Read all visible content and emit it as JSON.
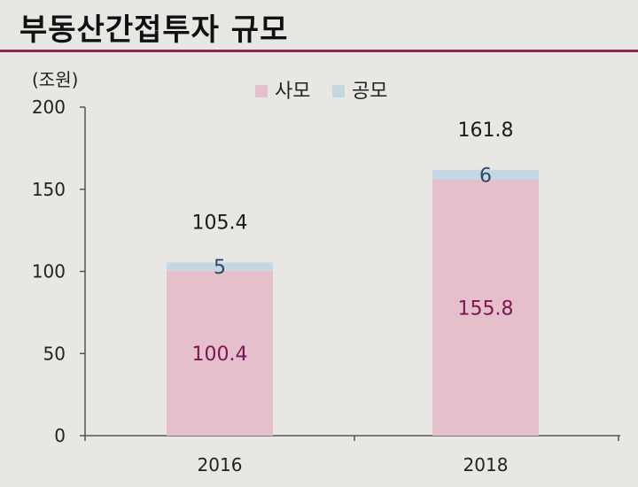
{
  "title": "부동산간접투자 규모",
  "colors": {
    "rule": "#8a2a55",
    "private": "#e6bfcd",
    "public": "#c6d7e4",
    "private_label": "#7b1650",
    "public_label": "#2b4a6b"
  },
  "chart_data": {
    "type": "bar",
    "stacked": true,
    "categories": [
      "2016",
      "2018"
    ],
    "series": [
      {
        "name": "사모",
        "values": [
          100.4,
          155.8
        ],
        "labels": [
          "100.4",
          "155.8"
        ]
      },
      {
        "name": "공모",
        "values": [
          5,
          6
        ],
        "labels": [
          "5",
          "6"
        ]
      }
    ],
    "totals": [
      "105.4",
      "161.8"
    ],
    "ylabel": "(조원)",
    "ylim": [
      0,
      200
    ],
    "yticks": [
      "0",
      "50",
      "100",
      "150",
      "200"
    ],
    "legend": "top-center",
    "grid": false
  }
}
